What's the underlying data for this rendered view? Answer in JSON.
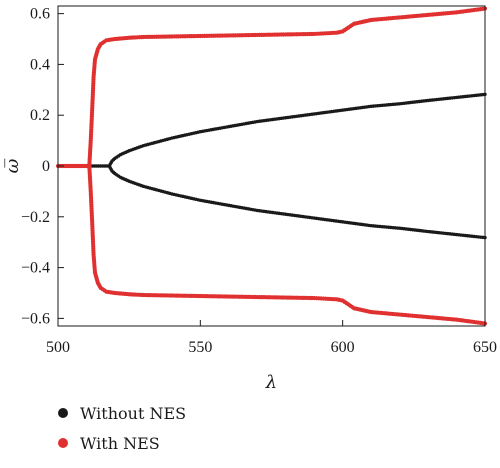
{
  "chart_data": {
    "type": "scatter",
    "xlabel": "λ",
    "ylabel": "ω̅",
    "xlim": [
      500,
      650
    ],
    "ylim": [
      -0.63,
      0.63
    ],
    "x_ticks": [
      500,
      550,
      600,
      650
    ],
    "y_ticks": [
      -0.6,
      -0.4,
      -0.2,
      0,
      0.2,
      0.4,
      0.6
    ],
    "y_tick_labels": [
      "−0.6",
      "−0.4",
      "−0.2",
      "0",
      "0.2",
      "0.4",
      "0.6"
    ],
    "grid": false,
    "legend_position": "below",
    "series": [
      {
        "name": "Without NES",
        "color": "#1a1a1a",
        "branches": [
          {
            "x": [
              500,
              505,
              510,
              515,
              518
            ],
            "y": [
              0,
              0,
              0,
              0,
              0
            ]
          },
          {
            "x": [
              518,
              519,
              520,
              522,
              525,
              530,
              540,
              550,
              560,
              570,
              580,
              590,
              600,
              610,
              620,
              630,
              640,
              650
            ],
            "y": [
              0,
              0.02,
              0.03,
              0.045,
              0.06,
              0.08,
              0.11,
              0.135,
              0.155,
              0.175,
              0.19,
              0.205,
              0.22,
              0.235,
              0.245,
              0.258,
              0.27,
              0.282
            ]
          },
          {
            "x": [
              518,
              519,
              520,
              522,
              525,
              530,
              540,
              550,
              560,
              570,
              580,
              590,
              600,
              610,
              620,
              630,
              640,
              650
            ],
            "y": [
              0,
              -0.02,
              -0.03,
              -0.045,
              -0.06,
              -0.08,
              -0.11,
              -0.135,
              -0.155,
              -0.175,
              -0.19,
              -0.205,
              -0.22,
              -0.235,
              -0.245,
              -0.258,
              -0.27,
              -0.282
            ]
          }
        ]
      },
      {
        "name": "With NES",
        "color": "#e03030",
        "branches": [
          {
            "x": [
              500,
              505,
              510,
              511
            ],
            "y": [
              0,
              0,
              0,
              0
            ]
          },
          {
            "x": [
              511,
              511.5,
              512,
              512.5,
              513,
              514,
              515,
              517,
              520,
              525,
              530,
              540,
              550,
              560,
              570,
              580,
              590,
              598,
              600,
              602,
              604,
              606,
              610,
              620,
              630,
              640,
              650
            ],
            "y": [
              0,
              0.1,
              0.22,
              0.35,
              0.42,
              0.46,
              0.48,
              0.495,
              0.5,
              0.505,
              0.508,
              0.51,
              0.512,
              0.514,
              0.516,
              0.518,
              0.52,
              0.525,
              0.53,
              0.545,
              0.56,
              0.565,
              0.575,
              0.585,
              0.595,
              0.605,
              0.62
            ]
          },
          {
            "x": [
              511,
              511.5,
              512,
              512.5,
              513,
              514,
              515,
              517,
              520,
              525,
              530,
              540,
              550,
              560,
              570,
              580,
              590,
              598,
              600,
              602,
              604,
              606,
              610,
              620,
              630,
              640,
              650
            ],
            "y": [
              0,
              -0.1,
              -0.22,
              -0.35,
              -0.42,
              -0.46,
              -0.48,
              -0.495,
              -0.5,
              -0.505,
              -0.508,
              -0.51,
              -0.512,
              -0.514,
              -0.516,
              -0.518,
              -0.52,
              -0.525,
              -0.53,
              -0.545,
              -0.56,
              -0.565,
              -0.575,
              -0.585,
              -0.595,
              -0.605,
              -0.62
            ]
          }
        ]
      }
    ]
  }
}
